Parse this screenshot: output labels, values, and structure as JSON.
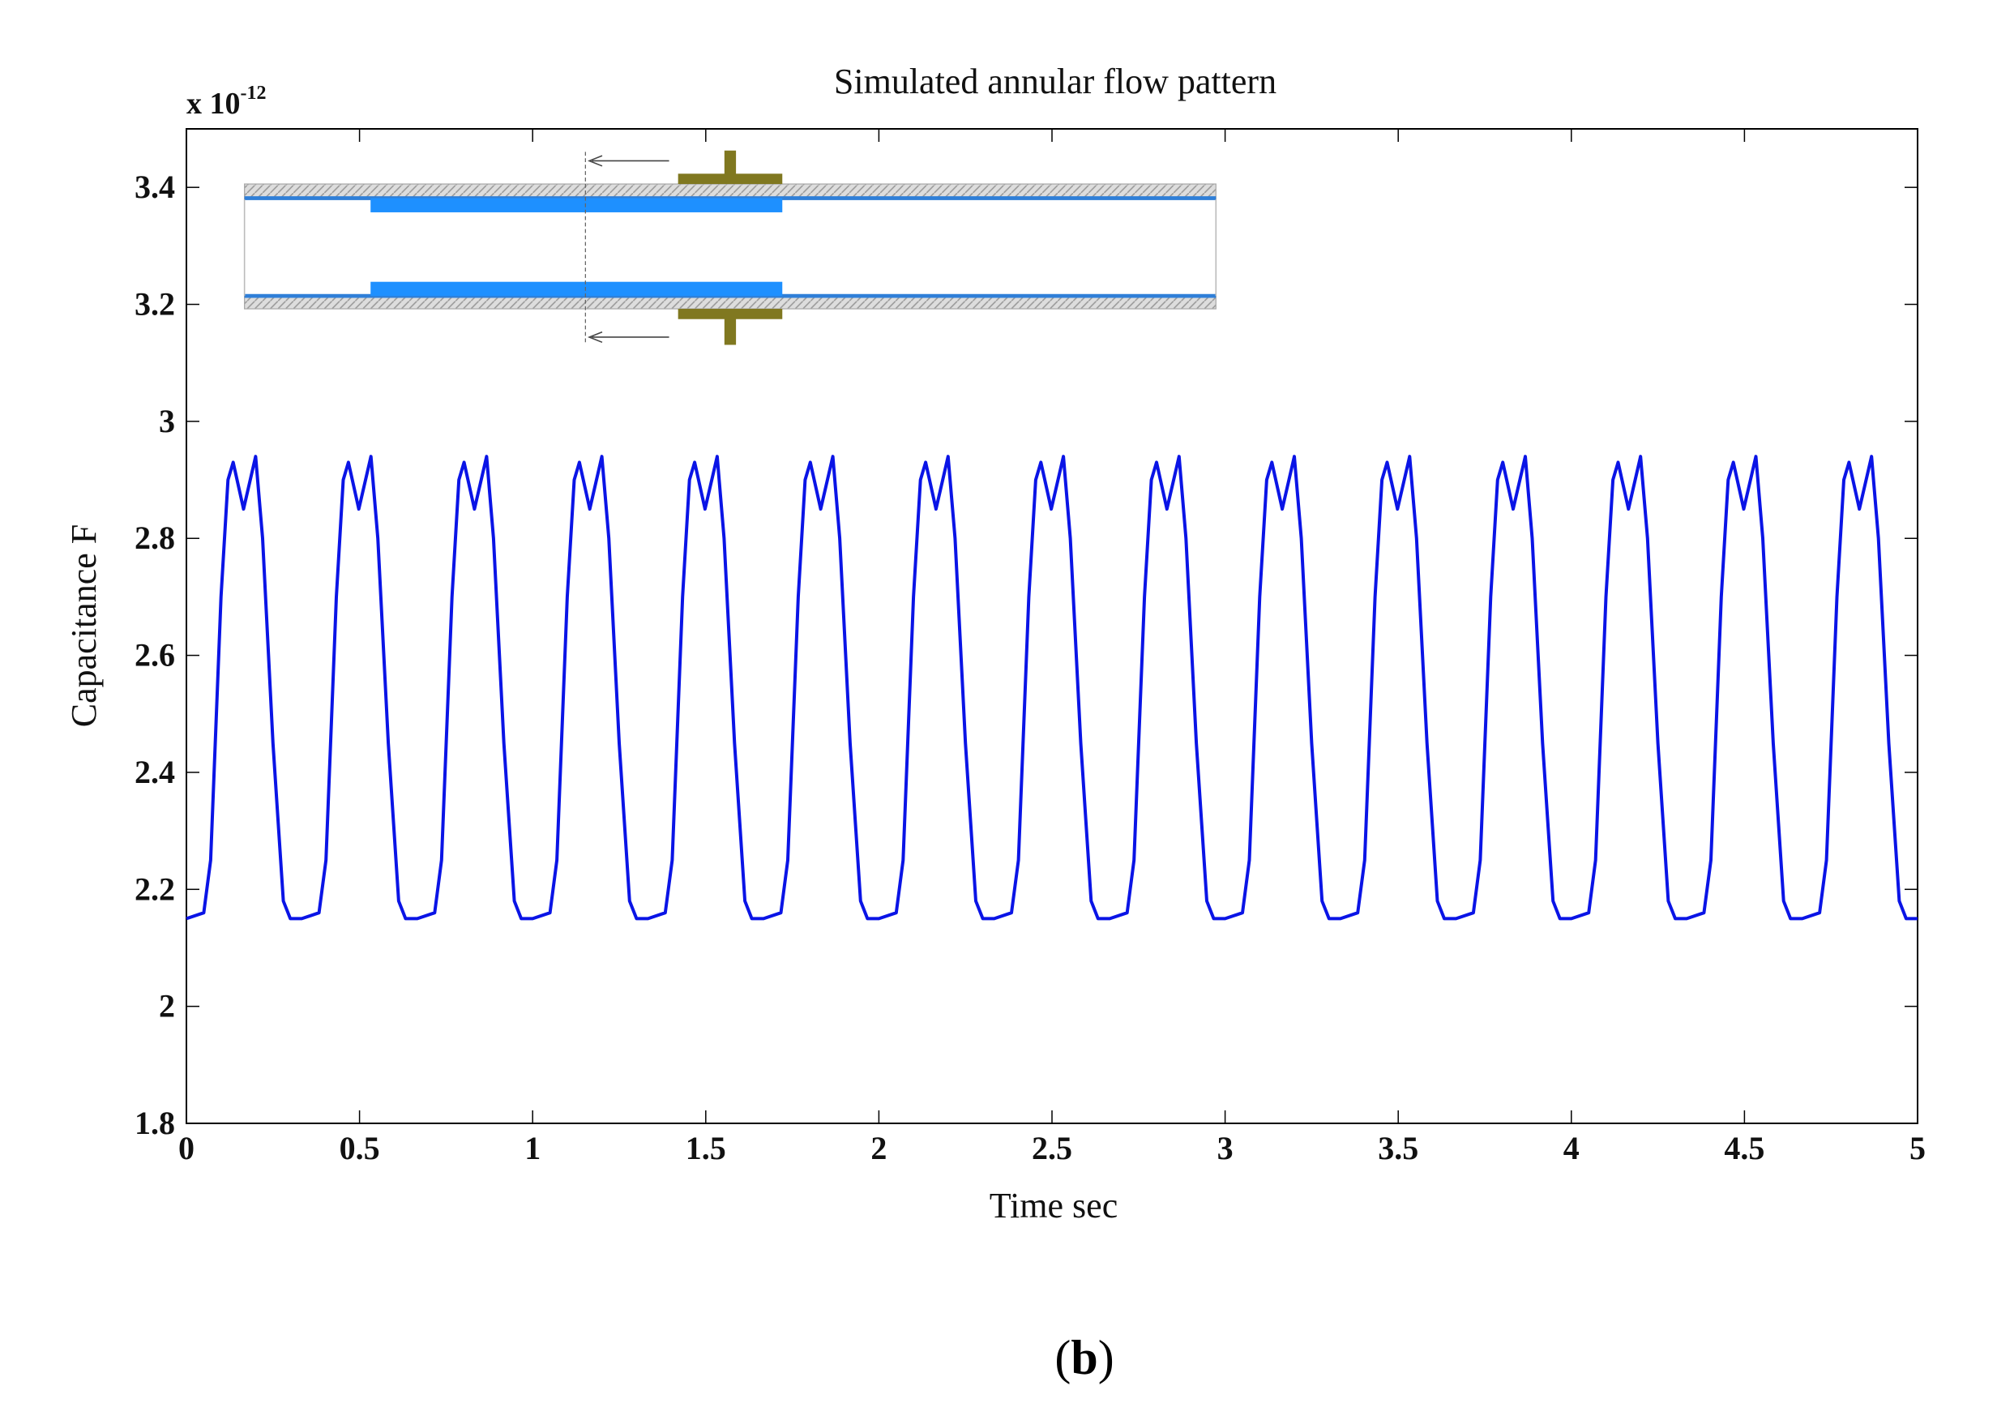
{
  "chart_data": {
    "type": "line",
    "title": "Simulated annular flow pattern",
    "axis_multiplier": {
      "base": "x 10",
      "exponent": "-12"
    },
    "x_label": "Time sec",
    "y_label": "Capacitance F",
    "caption": {
      "open": "(",
      "letter": "b",
      "close": ")"
    },
    "xlim": [
      0,
      5
    ],
    "xticks": [
      0,
      0.5,
      1,
      1.5,
      2,
      2.5,
      3,
      3.5,
      4,
      4.5,
      5
    ],
    "ylim": [
      1.8,
      3.5
    ],
    "yticks": [
      1.8,
      2,
      2.2,
      2.4,
      2.6,
      2.8,
      3,
      3.2,
      3.4
    ],
    "x": [
      0,
      0.05,
      0.07,
      0.1,
      0.12,
      0.135,
      0.165,
      0.2,
      0.22,
      0.25,
      0.28,
      0.3,
      0.333,
      0.383,
      0.403,
      0.433,
      0.453,
      0.468,
      0.498,
      0.533,
      0.553,
      0.583,
      0.613,
      0.633,
      0.667,
      0.717,
      0.737,
      0.767,
      0.787,
      0.802,
      0.832,
      0.867,
      0.887,
      0.917,
      0.947,
      0.967,
      1.0,
      1.05,
      1.07,
      1.1,
      1.12,
      1.135,
      1.165,
      1.2,
      1.22,
      1.25,
      1.28,
      1.3,
      1.333,
      1.383,
      1.403,
      1.433,
      1.453,
      1.468,
      1.498,
      1.533,
      1.553,
      1.583,
      1.613,
      1.633,
      1.667,
      1.717,
      1.737,
      1.767,
      1.787,
      1.802,
      1.832,
      1.867,
      1.887,
      1.917,
      1.947,
      1.967,
      2.0,
      2.05,
      2.07,
      2.1,
      2.12,
      2.135,
      2.165,
      2.2,
      2.22,
      2.25,
      2.28,
      2.3,
      2.333,
      2.383,
      2.403,
      2.433,
      2.453,
      2.468,
      2.498,
      2.533,
      2.553,
      2.583,
      2.613,
      2.633,
      2.667,
      2.717,
      2.737,
      2.767,
      2.787,
      2.802,
      2.832,
      2.867,
      2.887,
      2.917,
      2.947,
      2.967,
      3.0,
      3.05,
      3.07,
      3.1,
      3.12,
      3.135,
      3.165,
      3.2,
      3.22,
      3.25,
      3.28,
      3.3,
      3.333,
      3.383,
      3.403,
      3.433,
      3.453,
      3.468,
      3.498,
      3.533,
      3.553,
      3.583,
      3.613,
      3.633,
      3.667,
      3.717,
      3.737,
      3.767,
      3.787,
      3.802,
      3.832,
      3.867,
      3.887,
      3.917,
      3.947,
      3.967,
      4.0,
      4.05,
      4.07,
      4.1,
      4.12,
      4.135,
      4.165,
      4.2,
      4.22,
      4.25,
      4.28,
      4.3,
      4.333,
      4.383,
      4.403,
      4.433,
      4.453,
      4.468,
      4.498,
      4.533,
      4.553,
      4.583,
      4.613,
      4.633,
      4.667,
      4.717,
      4.737,
      4.767,
      4.787,
      4.802,
      4.832,
      4.867,
      4.887,
      4.917,
      4.947,
      4.967,
      5.0
    ],
    "series": [
      {
        "color": "#0a14e6",
        "values": [
          2.15,
          2.16,
          2.25,
          2.7,
          2.9,
          2.93,
          2.85,
          2.94,
          2.8,
          2.45,
          2.18,
          2.15,
          2.15,
          2.16,
          2.25,
          2.7,
          2.9,
          2.93,
          2.85,
          2.94,
          2.8,
          2.45,
          2.18,
          2.15,
          2.15,
          2.16,
          2.25,
          2.7,
          2.9,
          2.93,
          2.85,
          2.94,
          2.8,
          2.45,
          2.18,
          2.15,
          2.15,
          2.16,
          2.25,
          2.7,
          2.9,
          2.93,
          2.85,
          2.94,
          2.8,
          2.45,
          2.18,
          2.15,
          2.15,
          2.16,
          2.25,
          2.7,
          2.9,
          2.93,
          2.85,
          2.94,
          2.8,
          2.45,
          2.18,
          2.15,
          2.15,
          2.16,
          2.25,
          2.7,
          2.9,
          2.93,
          2.85,
          2.94,
          2.8,
          2.45,
          2.18,
          2.15,
          2.15,
          2.16,
          2.25,
          2.7,
          2.9,
          2.93,
          2.85,
          2.94,
          2.8,
          2.45,
          2.18,
          2.15,
          2.15,
          2.16,
          2.25,
          2.7,
          2.9,
          2.93,
          2.85,
          2.94,
          2.8,
          2.45,
          2.18,
          2.15,
          2.15,
          2.16,
          2.25,
          2.7,
          2.9,
          2.93,
          2.85,
          2.94,
          2.8,
          2.45,
          2.18,
          2.15,
          2.15,
          2.16,
          2.25,
          2.7,
          2.9,
          2.93,
          2.85,
          2.94,
          2.8,
          2.45,
          2.18,
          2.15,
          2.15,
          2.16,
          2.25,
          2.7,
          2.9,
          2.93,
          2.85,
          2.94,
          2.8,
          2.45,
          2.18,
          2.15,
          2.15,
          2.16,
          2.25,
          2.7,
          2.9,
          2.93,
          2.85,
          2.94,
          2.8,
          2.45,
          2.18,
          2.15,
          2.15,
          2.16,
          2.25,
          2.7,
          2.9,
          2.93,
          2.85,
          2.94,
          2.8,
          2.45,
          2.18,
          2.15,
          2.15,
          2.16,
          2.25,
          2.7,
          2.9,
          2.93,
          2.85,
          2.94,
          2.8,
          2.45,
          2.18,
          2.15,
          2.15,
          2.16,
          2.25,
          2.7,
          2.9,
          2.93,
          2.85,
          2.94,
          2.8,
          2.45,
          2.18,
          2.15,
          2.15
        ]
      }
    ]
  }
}
